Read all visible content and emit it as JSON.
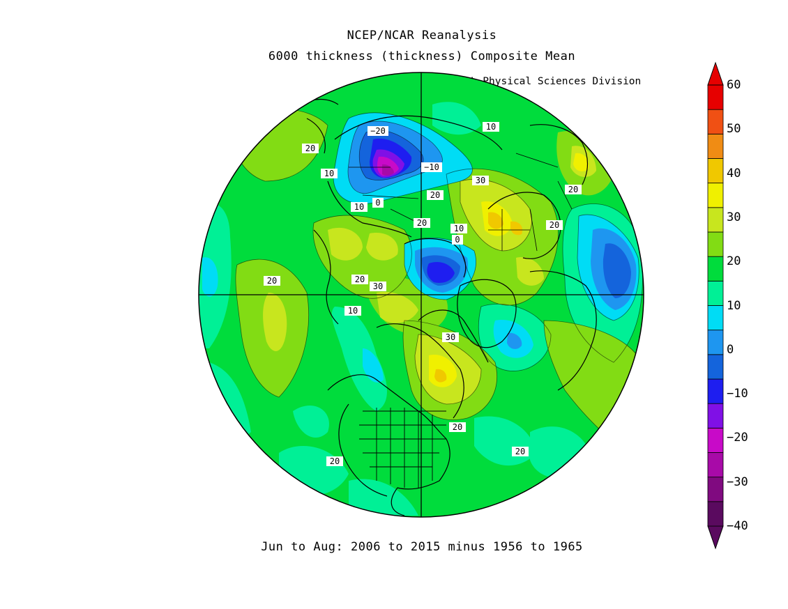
{
  "header": {
    "title": "NCEP/NCAR Reanalysis",
    "subtitle": "6000 thickness (thickness) Composite Mean",
    "credit": "NOAA/ESRL Physical Sciences Division"
  },
  "footer": {
    "period": "Jun to Aug: 2006 to 2015 minus 1956 to 1965"
  },
  "colorbar": {
    "min": -40,
    "max": 60,
    "tick_labels": [
      "60",
      "50",
      "40",
      "30",
      "20",
      "10",
      "0",
      "−10",
      "−20",
      "−30",
      "−40"
    ],
    "colors": [
      "#5a0a5f",
      "#800a80",
      "#a80aa8",
      "#c80ac8",
      "#8010e6",
      "#1e1ef0",
      "#1464dc",
      "#1e96f0",
      "#00dcf5",
      "#00f096",
      "#00dc3c",
      "#82dc14",
      "#c8e61e",
      "#f0f000",
      "#f0c800",
      "#f08c14",
      "#f05014",
      "#e60000"
    ]
  },
  "map": {
    "projection": "north-polar-stereographic",
    "contour_labels": [
      "−20",
      "−10",
      "0",
      "10",
      "20",
      "30"
    ],
    "features": [
      "coastlines",
      "country-borders",
      "us-state-borders",
      "meridian-axes"
    ]
  }
}
